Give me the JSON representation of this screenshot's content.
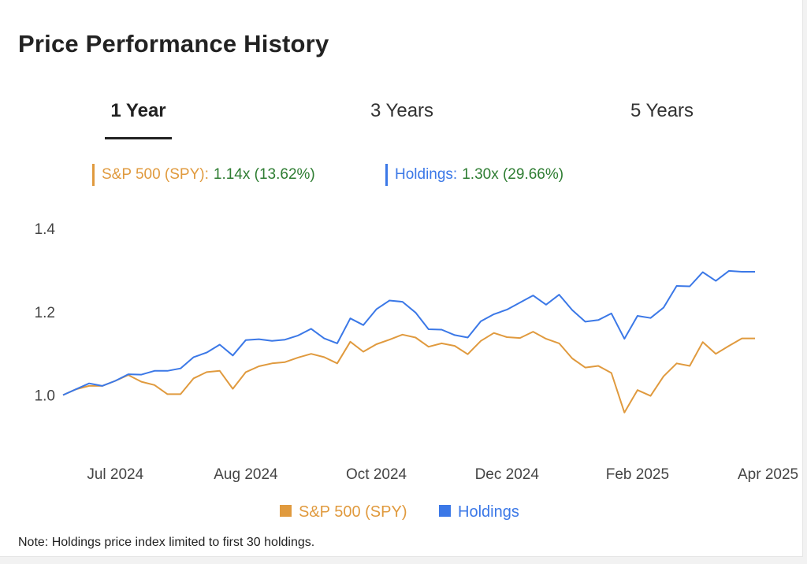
{
  "page": {
    "title": "Price Performance History",
    "tabs": [
      {
        "label": "1 Year",
        "active": true
      },
      {
        "label": "3 Years",
        "active": false
      },
      {
        "label": "5 Years",
        "active": false
      }
    ],
    "summary": [
      {
        "label": "S&P 500 (SPY):",
        "value": "1.14x (13.62%)",
        "color": "#e09a3e"
      },
      {
        "label": "Holdings:",
        "value": "1.30x (29.66%)",
        "color": "#3b78e7"
      }
    ],
    "note": "Note: Holdings price index limited to first 30 holdings."
  },
  "chart_data": {
    "type": "line",
    "x_ticks": [
      "Jul 2024",
      "Aug 2024",
      "Oct 2024",
      "Dec 2024",
      "Feb 2025",
      "Apr 2025"
    ],
    "x_tick_index": [
      4,
      14,
      24,
      34,
      44,
      54
    ],
    "y_ticks": [
      "1.0",
      "1.2",
      "1.4"
    ],
    "ylim": [
      1.0,
      1.4
    ],
    "legend_position": "bottom",
    "grid": false,
    "series": [
      {
        "name": "S&P 500 (SPY)",
        "color": "#e09a3e",
        "values": [
          1.0,
          1.014,
          1.022,
          1.022,
          1.034,
          1.048,
          1.032,
          1.024,
          1.002,
          1.002,
          1.04,
          1.055,
          1.058,
          1.015,
          1.055,
          1.069,
          1.076,
          1.079,
          1.09,
          1.099,
          1.091,
          1.076,
          1.128,
          1.104,
          1.122,
          1.133,
          1.145,
          1.138,
          1.116,
          1.124,
          1.118,
          1.098,
          1.13,
          1.149,
          1.139,
          1.137,
          1.152,
          1.135,
          1.124,
          1.088,
          1.066,
          1.07,
          1.053,
          0.958,
          1.012,
          0.998,
          1.045,
          1.076,
          1.07,
          1.127,
          1.099,
          1.118,
          1.136,
          1.136
        ]
      },
      {
        "name": "Holdings",
        "color": "#3b78e7",
        "values": [
          1.0,
          1.014,
          1.028,
          1.022,
          1.034,
          1.05,
          1.049,
          1.058,
          1.058,
          1.064,
          1.091,
          1.102,
          1.121,
          1.095,
          1.132,
          1.134,
          1.13,
          1.133,
          1.143,
          1.159,
          1.136,
          1.124,
          1.184,
          1.168,
          1.206,
          1.227,
          1.224,
          1.198,
          1.158,
          1.157,
          1.144,
          1.138,
          1.177,
          1.194,
          1.205,
          1.222,
          1.239,
          1.217,
          1.241,
          1.204,
          1.176,
          1.18,
          1.196,
          1.135,
          1.19,
          1.185,
          1.21,
          1.262,
          1.261,
          1.295,
          1.274,
          1.298,
          1.296,
          1.296
        ]
      }
    ]
  }
}
